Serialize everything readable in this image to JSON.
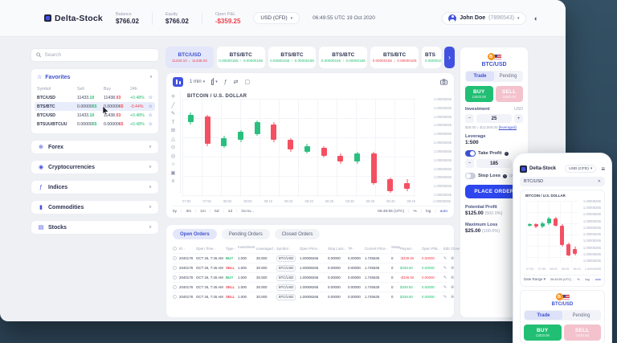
{
  "colors": {
    "accent": "#3f51cf",
    "green": "#21bf73",
    "red": "#f0424e",
    "sell_pink": "#f3c2cd",
    "order_blue": "#2d46ee",
    "candle_green": "#2abf7e",
    "candle_red": "#f45062",
    "background_dark": "#30495c",
    "btc_orange": "#f7931a"
  },
  "header": {
    "logo": "Delta-Stock",
    "balance_label": "Balance",
    "balance_value": "$766.02",
    "equity_label": "Equity",
    "equity_value": "$766.02",
    "open_pl_label": "Open P&L",
    "open_pl_value": "-$359.25",
    "currency_selector": "USD (CFD)",
    "timestamp": "06:49:55 UTC 19 Oct 2020",
    "user_name": "John Doe",
    "user_id": "(7896543)"
  },
  "sidebar": {
    "search_placeholder": "Search",
    "favorites": {
      "title": "Favorites",
      "columns": [
        "Symbol",
        "Sell",
        "Buy",
        "24h"
      ],
      "rows": [
        {
          "symbol": "BTC/USD",
          "sell": "11433.",
          "sell_hl": "10",
          "buy": "11438.",
          "buy_hl": "03",
          "change": "+0.48%",
          "up": true,
          "selected": false
        },
        {
          "symbol": "BTS/BTC",
          "sell": "0.00000",
          "sell_hl": "55",
          "buy": "0.00000",
          "buy_hl": "65",
          "change": "-0.44%",
          "up": false,
          "selected": true
        },
        {
          "symbol": "BTC/USD",
          "sell": "11433.",
          "sell_hl": "10",
          "buy": "11438.",
          "buy_hl": "03",
          "change": "+0.48%",
          "up": true,
          "selected": false
        },
        {
          "symbol": "BTSUU/BTCUU",
          "sell": "0.00000",
          "sell_hl": "55",
          "buy": "0.00000",
          "buy_hl": "65",
          "change": "+0.48%",
          "up": true,
          "selected": false
        }
      ]
    },
    "sections": [
      {
        "label": "Forex",
        "icon": "globe-icon"
      },
      {
        "label": "Cryptocurrencies",
        "icon": "bitcoin-icon"
      },
      {
        "label": "Indices",
        "icon": "indices-icon"
      },
      {
        "label": "Commodities",
        "icon": "commodities-icon"
      },
      {
        "label": "Stocks",
        "icon": "stocks-icon"
      }
    ]
  },
  "symbol_tabs": [
    {
      "symbol": "BTC/USD",
      "sell": "11433.10",
      "buy": "11438.03",
      "dir": "down",
      "active": true,
      "partial": false
    },
    {
      "symbol": "BTS/BTC",
      "sell": "0.00000155",
      "buy": "0.00000165",
      "dir": "up",
      "active": false,
      "partial": false
    },
    {
      "symbol": "BTS/BTC",
      "sell": "0.00000155",
      "buy": "0.00000165",
      "dir": "up",
      "active": false,
      "partial": false
    },
    {
      "symbol": "BTS/BTC",
      "sell": "0.00000155",
      "buy": "0.00000165",
      "dir": "up",
      "active": false,
      "partial": false
    },
    {
      "symbol": "BTS/BTC",
      "sell": "0.00000155",
      "buy": "0.00000165",
      "dir": "down",
      "active": false,
      "partial": false
    },
    {
      "symbol": "BTS",
      "sell": "0.00000155",
      "buy": "",
      "dir": "up",
      "active": false,
      "partial": true
    }
  ],
  "chart": {
    "interval": "1 min",
    "title": "BITCOIN / U.S. DOLLAR",
    "price_label": "1.00008265",
    "price_rows": 12,
    "axis_price": "1.00008265",
    "ranges": [
      "5y",
      "3m",
      "1m",
      "5d",
      "1d",
      "Go to..."
    ],
    "footer_time": "06:49:55 (UTC)",
    "footer_items": [
      "%",
      "log",
      "auto"
    ]
  },
  "chart_tools": [
    "crosshair",
    "trend-line",
    "brush",
    "text",
    "pattern",
    "forecast",
    "measure",
    "zoom",
    "magnet",
    "lock",
    "more"
  ],
  "chart_data": {
    "type": "candlestick",
    "symbol": "BTC/USD",
    "title": "BITCOIN / U.S. DOLLAR",
    "main": {
      "x_labels": [
        "07:50",
        "07:55",
        "08:00",
        "08:05",
        "08:10",
        "08:15",
        "08:20",
        "08:25",
        "08:30",
        "08:35",
        "08:40",
        "08:45"
      ],
      "candles": [
        {
          "o": 76,
          "h": 86,
          "l": 74,
          "c": 84
        },
        {
          "o": 82,
          "h": 84,
          "l": 52,
          "c": 54
        },
        {
          "o": 52,
          "h": 62,
          "l": 50,
          "c": 60
        },
        {
          "o": 58,
          "h": 68,
          "l": 56,
          "c": 66
        },
        {
          "o": 64,
          "h": 78,
          "l": 62,
          "c": 76
        },
        {
          "o": 74,
          "h": 76,
          "l": 56,
          "c": 58
        },
        {
          "o": 58,
          "h": 60,
          "l": 46,
          "c": 48
        },
        {
          "o": 46,
          "h": 54,
          "l": 44,
          "c": 52
        },
        {
          "o": 50,
          "h": 52,
          "l": 40,
          "c": 42
        },
        {
          "o": 42,
          "h": 44,
          "l": 34,
          "c": 36
        },
        {
          "o": 36,
          "h": 46,
          "l": 34,
          "c": 44
        },
        {
          "o": 44,
          "h": 46,
          "l": 12,
          "c": 14
        },
        {
          "o": 18,
          "h": 20,
          "l": 4,
          "c": 6
        },
        {
          "o": 14,
          "h": 18,
          "l": 6,
          "c": 8
        }
      ]
    },
    "phone": {
      "x_labels": [
        "07:50",
        "07:55",
        "08:00",
        "08:05",
        "08:10"
      ],
      "candles": [
        {
          "o": 60,
          "h": 64,
          "l": 58,
          "c": 62
        },
        {
          "o": 62,
          "h": 64,
          "l": 56,
          "c": 58
        },
        {
          "o": 58,
          "h": 66,
          "l": 56,
          "c": 64
        },
        {
          "o": 63,
          "h": 74,
          "l": 61,
          "c": 72
        },
        {
          "o": 72,
          "h": 74,
          "l": 58,
          "c": 60
        },
        {
          "o": 60,
          "h": 62,
          "l": 26,
          "c": 28
        },
        {
          "o": 30,
          "h": 32,
          "l": 10,
          "c": 12
        },
        {
          "o": 22,
          "h": 26,
          "l": 12,
          "c": 14
        }
      ]
    }
  },
  "orders": {
    "tabs": [
      "Open Orders",
      "Pending Orders",
      "Closed Orders"
    ],
    "active_tab": 0,
    "columns": [
      "ID",
      "Open Time",
      "Type",
      "Investment",
      "Leveraged",
      "Symbol",
      "Open Price",
      "Stop Loss",
      "TP",
      "Current Price",
      "Swap",
      "Payout",
      "Open PNL",
      "Edit",
      "Close"
    ],
    "rows": [
      {
        "id": "2040178",
        "time": "OCT 26, 7:45 AM",
        "type": "BUY",
        "investment": "1.000",
        "leveraged": "30.000",
        "symbol": "BTC/USD",
        "open_price": "1.00008265",
        "stop_loss": "0.00000",
        "tp": "0.00000",
        "current_price": "1.745635",
        "swap": "0",
        "payout": "-$339.50",
        "pnl": "0.00000"
      },
      {
        "id": "2040178",
        "time": "OCT 26, 7:45 AM",
        "type": "SELL",
        "investment": "1.000",
        "leveraged": "30.000",
        "symbol": "BTC/USD",
        "open_price": "1.00008265",
        "stop_loss": "0.00000",
        "tp": "0.00000",
        "current_price": "1.745635",
        "swap": "0",
        "payout": "$339.50",
        "pnl": "0.00000"
      },
      {
        "id": "2040178",
        "time": "OCT 26, 7:45 AM",
        "type": "BUY",
        "investment": "1.000",
        "leveraged": "30.000",
        "symbol": "BTC/USD",
        "open_price": "1.00008265",
        "stop_loss": "0.00000",
        "tp": "0.00000",
        "current_price": "1.745635",
        "swap": "0",
        "payout": "-$339.50",
        "pnl": "0.00000"
      },
      {
        "id": "2040178",
        "time": "OCT 26, 7:45 AM",
        "type": "SELL",
        "investment": "1.000",
        "leveraged": "30.000",
        "symbol": "BTC/USD",
        "open_price": "1.00008265",
        "stop_loss": "0.00000",
        "tp": "0.00000",
        "current_price": "1.745635",
        "swap": "0",
        "payout": "$339.50",
        "pnl": "0.00000"
      },
      {
        "id": "2040178",
        "time": "OCT 26, 7:45 AM",
        "type": "SELL",
        "investment": "1.000",
        "leveraged": "30.000",
        "symbol": "BTC/USD",
        "open_price": "1.00008265",
        "stop_loss": "0.00000",
        "tp": "0.00000",
        "current_price": "1.745635",
        "swap": "0",
        "payout": "$339.50",
        "pnl": "0.00000"
      }
    ]
  },
  "trade_panel": {
    "symbol": "BTC/USD",
    "tabs": [
      "Trade",
      "Pending"
    ],
    "buy_label": "BUY",
    "buy_price": "11503.06",
    "sell_label": "SELL",
    "sell_price": "11503.62",
    "investment_label": "Investment",
    "investment_currency": "USD",
    "investment_value": "25",
    "investment_note": "$25.00 = $12,500.00",
    "investment_note_link": "(leveraged)",
    "leverage_label": "Leverage",
    "leverage_value": "1:500",
    "take_profit_label": "Take Profit",
    "take_profit_value": "185",
    "stop_loss_label": "Stop Loss",
    "stop_loss_note": "(2 U",
    "place_order_label": "PLACE ORDER",
    "potential_profit_label": "Potential Profit",
    "potential_profit_value": "$125.00",
    "potential_profit_pct": "(500.0%)",
    "max_loss_label": "Maximum Loss",
    "max_loss_value": "$25.00",
    "max_loss_pct": "(100.0%)"
  },
  "phone": {
    "logo": "Delta-Stock",
    "currency_selector": "USD (CFD)",
    "symbol_input": "BTC/USD",
    "chart_title": "BITCOIN / U.S. DOLLAR",
    "price_label": "1.00008265",
    "price_rows": 10,
    "axis_price": "1.00008265",
    "date_range": "Date Range",
    "footer_time": "06:49:55 (UTC)",
    "footer_items": [
      "%",
      "log",
      "auto"
    ],
    "symbol": "BTC/USD",
    "tabs": [
      "Trade",
      "Pending"
    ],
    "buy_label": "BUY",
    "buy_price": "11503.06",
    "sell_label": "SELL",
    "sell_price": "11503.62"
  }
}
